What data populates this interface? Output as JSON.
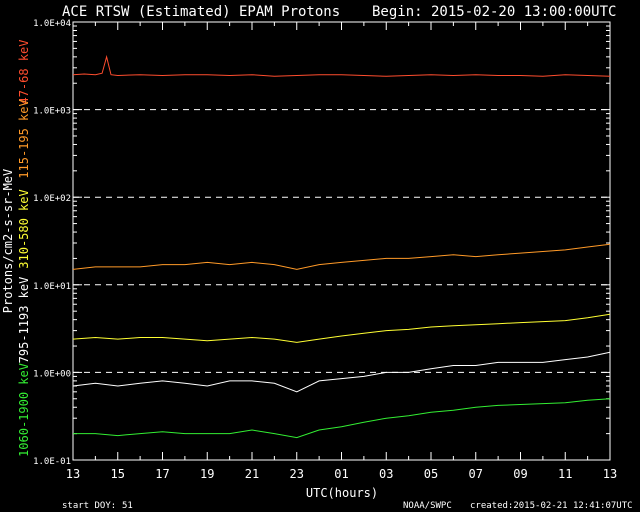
{
  "chart_data": {
    "type": "line",
    "title": "ACE RTSW (Estimated) EPAM Protons",
    "begin_label": "Begin: 2015-02-20 13:00:00UTC",
    "xlabel": "UTC(hours)",
    "ylabel": "Protons/cm2-s-sr-MeV",
    "x_ticks": [
      "13",
      "15",
      "17",
      "19",
      "21",
      "23",
      "01",
      "03",
      "05",
      "07",
      "09",
      "11",
      "13"
    ],
    "xlim_hours": [
      0,
      24
    ],
    "y_scale": "log",
    "ylim": [
      0.1,
      10000
    ],
    "y_ticks": [
      "1.0E-01",
      "1.0E+00",
      "1.0E+01",
      "1.0E+02",
      "1.0E+03",
      "1.0E+04"
    ],
    "dashed_reference_lines": [
      1.0,
      10.0,
      100.0,
      1000.0
    ],
    "start_doy_label": "start DOY:",
    "start_doy": "51",
    "credit": "NOAA/SWPC",
    "created": "created:2015-02-21 12:41:07UTC",
    "series": [
      {
        "name": "47-68 keV",
        "color": "#ff4d2e",
        "x": [
          0,
          0.5,
          1,
          1.3,
          1.5,
          1.7,
          2,
          3,
          4,
          5,
          6,
          7,
          8,
          9,
          10,
          11,
          12,
          13,
          14,
          15,
          16,
          17,
          18,
          19,
          20,
          21,
          22,
          23,
          24
        ],
        "y": [
          2500,
          2550,
          2500,
          2600,
          4000,
          2500,
          2450,
          2500,
          2450,
          2500,
          2500,
          2450,
          2500,
          2400,
          2450,
          2500,
          2500,
          2450,
          2400,
          2450,
          2500,
          2450,
          2500,
          2450,
          2450,
          2400,
          2500,
          2450,
          2400
        ]
      },
      {
        "name": "115-195 keV",
        "color": "#ff9a28",
        "x": [
          0,
          1,
          2,
          3,
          4,
          5,
          6,
          7,
          8,
          9,
          10,
          11,
          12,
          13,
          14,
          15,
          16,
          17,
          18,
          19,
          20,
          21,
          22,
          23,
          24
        ],
        "y": [
          15,
          16,
          16,
          16,
          17,
          17,
          18,
          17,
          18,
          17,
          15,
          17,
          18,
          19,
          20,
          20,
          21,
          22,
          21,
          22,
          23,
          24,
          25,
          27,
          29
        ]
      },
      {
        "name": "310-580 keV",
        "color": "#ffff33",
        "x": [
          0,
          1,
          2,
          3,
          4,
          5,
          6,
          7,
          8,
          9,
          10,
          11,
          12,
          13,
          14,
          15,
          16,
          17,
          18,
          19,
          20,
          21,
          22,
          23,
          24
        ],
        "y": [
          2.4,
          2.5,
          2.4,
          2.5,
          2.5,
          2.4,
          2.3,
          2.4,
          2.5,
          2.4,
          2.2,
          2.4,
          2.6,
          2.8,
          3.0,
          3.1,
          3.3,
          3.4,
          3.5,
          3.6,
          3.7,
          3.8,
          3.9,
          4.2,
          4.6
        ]
      },
      {
        "name": "795-1193 keV",
        "color": "#ffffff",
        "x": [
          0,
          1,
          2,
          3,
          4,
          5,
          6,
          7,
          8,
          9,
          10,
          11,
          12,
          13,
          14,
          15,
          16,
          17,
          18,
          19,
          20,
          21,
          22,
          23,
          24
        ],
        "y": [
          0.7,
          0.75,
          0.7,
          0.75,
          0.8,
          0.75,
          0.7,
          0.8,
          0.8,
          0.75,
          0.6,
          0.8,
          0.85,
          0.9,
          1.0,
          1.0,
          1.1,
          1.2,
          1.2,
          1.3,
          1.3,
          1.3,
          1.4,
          1.5,
          1.7
        ]
      },
      {
        "name": "1060-1900 keV",
        "color": "#33ee33",
        "x": [
          0,
          1,
          2,
          3,
          4,
          5,
          6,
          7,
          8,
          9,
          10,
          11,
          12,
          13,
          14,
          15,
          16,
          17,
          18,
          19,
          20,
          21,
          22,
          23,
          24
        ],
        "y": [
          0.2,
          0.2,
          0.19,
          0.2,
          0.21,
          0.2,
          0.2,
          0.2,
          0.22,
          0.2,
          0.18,
          0.22,
          0.24,
          0.27,
          0.3,
          0.32,
          0.35,
          0.37,
          0.4,
          0.42,
          0.43,
          0.44,
          0.45,
          0.48,
          0.5
        ]
      }
    ]
  }
}
